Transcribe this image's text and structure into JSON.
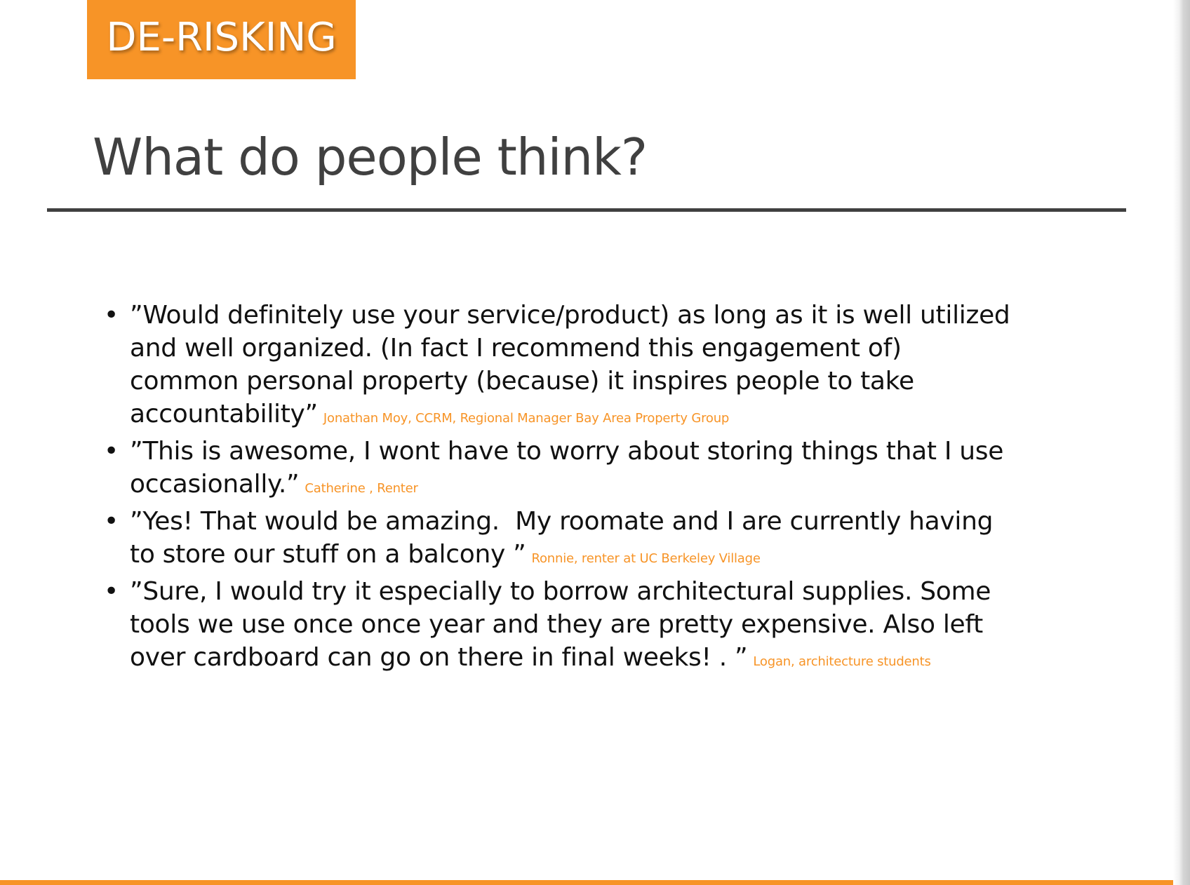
{
  "section_tag": "DE-RISKING",
  "title": "What do people think?",
  "quotes": [
    {
      "lines": [
        "”Would definitely use your service/product) as long as it is well utilized",
        "and well organized. (In fact I recommend this engagement of)",
        "common personal property (because) it inspires people to take",
        "accountability”"
      ],
      "attribution": "Jonathan Moy, CCRM, Regional Manager Bay Area Property Group"
    },
    {
      "lines": [
        "”This is awesome, I wont have to worry about storing things that I use",
        "occasionally.”"
      ],
      "attribution": "Catherine , Renter"
    },
    {
      "lines": [
        "”Yes! That would be amazing.  My roomate and I are currently having",
        "to store our stuff on a balcony ”"
      ],
      "attribution": "Ronnie, renter at UC Berkeley Village"
    },
    {
      "lines": [
        "”Sure, I would try it especially to borrow architectural supplies. Some",
        "tools we use once once year and they are pretty expensive. Also left",
        "over cardboard can go on there in final weeks! . ”"
      ],
      "attribution": "Logan, architecture students"
    }
  ],
  "colors": {
    "accent": "#f79427",
    "title": "#404040",
    "body": "#111111"
  }
}
